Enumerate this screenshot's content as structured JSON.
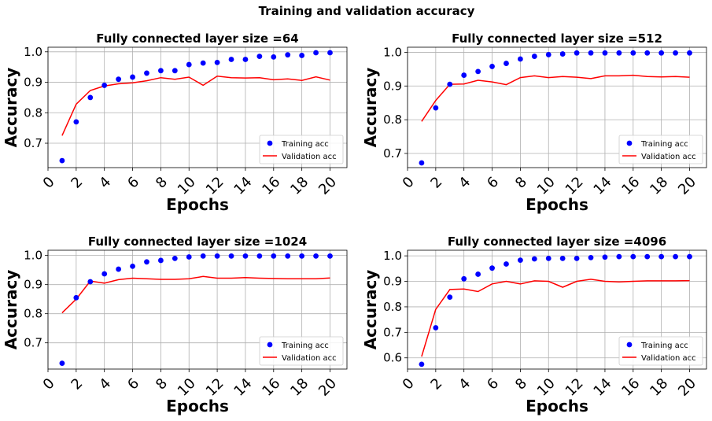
{
  "figure": {
    "title": "Training and validation accuracy"
  },
  "chart_data": [
    {
      "type": "scatter",
      "title": "Fully connected layer size =64",
      "xlabel": "Epochs",
      "ylabel": "Accuracy",
      "xlim": [
        0,
        21.2
      ],
      "ylim": [
        0.62,
        1.015
      ],
      "xticks": [
        0,
        2,
        4,
        6,
        8,
        10,
        12,
        14,
        16,
        18,
        20
      ],
      "yticks": [
        0.7,
        0.8,
        0.9,
        1.0
      ],
      "ytick_labels": [
        "0.7",
        "0.8",
        "0.9",
        "1.0"
      ],
      "grid": true,
      "legend_position": "lower right",
      "x": [
        1,
        2,
        3,
        4,
        5,
        6,
        7,
        8,
        9,
        10,
        11,
        12,
        13,
        14,
        15,
        16,
        17,
        18,
        19,
        20
      ],
      "series": [
        {
          "name": "Training acc",
          "kind": "points",
          "color": "#0000ff",
          "values": [
            0.643,
            0.77,
            0.85,
            0.89,
            0.91,
            0.917,
            0.93,
            0.938,
            0.938,
            0.958,
            0.963,
            0.965,
            0.975,
            0.975,
            0.985,
            0.983,
            0.99,
            0.988,
            0.997,
            0.997
          ]
        },
        {
          "name": "Validation acc",
          "kind": "line",
          "color": "#ff0000",
          "values": [
            0.725,
            0.828,
            0.873,
            0.888,
            0.895,
            0.898,
            0.905,
            0.915,
            0.91,
            0.917,
            0.89,
            0.92,
            0.915,
            0.914,
            0.915,
            0.908,
            0.911,
            0.906,
            0.918,
            0.907
          ]
        }
      ]
    },
    {
      "type": "scatter",
      "title": "Fully connected layer size =512",
      "xlabel": "Epochs",
      "ylabel": "Accuracy",
      "xlim": [
        0,
        21.2
      ],
      "ylim": [
        0.658,
        1.015
      ],
      "xticks": [
        0,
        2,
        4,
        6,
        8,
        10,
        12,
        14,
        16,
        18,
        20
      ],
      "yticks": [
        0.7,
        0.8,
        0.9,
        1.0
      ],
      "ytick_labels": [
        "0.7",
        "0.8",
        "0.9",
        "1.0"
      ],
      "grid": true,
      "legend_position": "lower right",
      "x": [
        1,
        2,
        3,
        4,
        5,
        6,
        7,
        8,
        9,
        10,
        11,
        12,
        13,
        14,
        15,
        16,
        17,
        18,
        19,
        20
      ],
      "series": [
        {
          "name": "Training acc",
          "kind": "points",
          "color": "#0000ff",
          "values": [
            0.672,
            0.835,
            0.905,
            0.932,
            0.943,
            0.958,
            0.967,
            0.98,
            0.988,
            0.993,
            0.995,
            0.998,
            0.998,
            0.998,
            0.998,
            0.998,
            0.998,
            0.998,
            0.998,
            0.998
          ]
        },
        {
          "name": "Validation acc",
          "kind": "line",
          "color": "#ff0000",
          "values": [
            0.795,
            0.857,
            0.905,
            0.906,
            0.917,
            0.912,
            0.904,
            0.925,
            0.93,
            0.925,
            0.928,
            0.926,
            0.922,
            0.93,
            0.93,
            0.932,
            0.928,
            0.927,
            0.928,
            0.926
          ]
        }
      ]
    },
    {
      "type": "scatter",
      "title": "Fully connected layer size =1024",
      "xlabel": "Epochs",
      "ylabel": "Accuracy",
      "xlim": [
        0,
        21.2
      ],
      "ylim": [
        0.61,
        1.018
      ],
      "xticks": [
        0,
        2,
        4,
        6,
        8,
        10,
        12,
        14,
        16,
        18,
        20
      ],
      "yticks": [
        0.7,
        0.8,
        0.9,
        1.0
      ],
      "ytick_labels": [
        "0.7",
        "0.8",
        "0.9",
        "1.0"
      ],
      "grid": true,
      "legend_position": "lower right",
      "x": [
        1,
        2,
        3,
        4,
        5,
        6,
        7,
        8,
        9,
        10,
        11,
        12,
        13,
        14,
        15,
        16,
        17,
        18,
        19,
        20
      ],
      "series": [
        {
          "name": "Training acc",
          "kind": "points",
          "color": "#0000ff",
          "values": [
            0.63,
            0.855,
            0.91,
            0.937,
            0.953,
            0.963,
            0.978,
            0.983,
            0.99,
            0.995,
            0.998,
            0.998,
            0.998,
            0.998,
            0.998,
            0.998,
            0.998,
            0.998,
            0.998,
            0.998
          ]
        },
        {
          "name": "Validation acc",
          "kind": "line",
          "color": "#ff0000",
          "values": [
            0.803,
            0.85,
            0.912,
            0.905,
            0.917,
            0.922,
            0.92,
            0.918,
            0.918,
            0.92,
            0.928,
            0.922,
            0.922,
            0.924,
            0.922,
            0.921,
            0.92,
            0.92,
            0.92,
            0.923
          ]
        }
      ]
    },
    {
      "type": "scatter",
      "title": "Fully connected layer size =4096",
      "xlabel": "Epochs",
      "ylabel": "Accuracy",
      "xlim": [
        0,
        21.2
      ],
      "ylim": [
        0.556,
        1.022
      ],
      "xticks": [
        0,
        2,
        4,
        6,
        8,
        10,
        12,
        14,
        16,
        18,
        20
      ],
      "yticks": [
        0.6,
        0.7,
        0.8,
        0.9,
        1.0
      ],
      "ytick_labels": [
        "0.6",
        "0.7",
        "0.8",
        "0.9",
        "1.0"
      ],
      "grid": true,
      "legend_position": "lower right",
      "x": [
        1,
        2,
        3,
        4,
        5,
        6,
        7,
        8,
        9,
        10,
        11,
        12,
        13,
        14,
        15,
        16,
        17,
        18,
        19,
        20
      ],
      "series": [
        {
          "name": "Training acc",
          "kind": "points",
          "color": "#0000ff",
          "values": [
            0.575,
            0.718,
            0.838,
            0.91,
            0.928,
            0.952,
            0.968,
            0.983,
            0.988,
            0.99,
            0.99,
            0.99,
            0.993,
            0.995,
            0.997,
            0.997,
            0.997,
            0.997,
            0.997,
            0.997
          ]
        },
        {
          "name": "Validation acc",
          "kind": "line",
          "color": "#ff0000",
          "values": [
            0.605,
            0.79,
            0.868,
            0.87,
            0.86,
            0.89,
            0.9,
            0.89,
            0.902,
            0.9,
            0.877,
            0.9,
            0.908,
            0.9,
            0.898,
            0.9,
            0.902,
            0.902,
            0.902,
            0.903
          ]
        }
      ]
    }
  ]
}
